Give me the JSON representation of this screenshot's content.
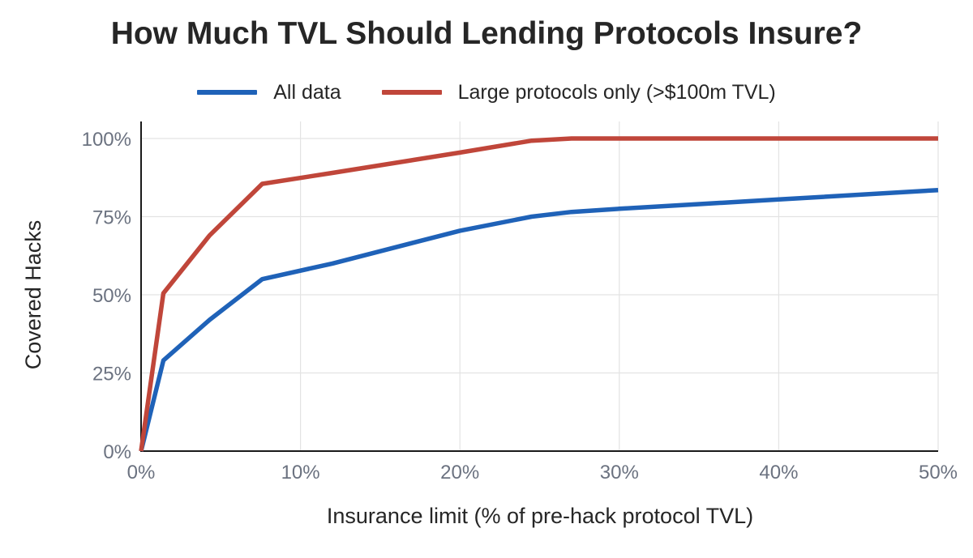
{
  "chart_data": {
    "type": "line",
    "title": "How Much TVL Should Lending Protocols Insure?",
    "xlabel": "Insurance limit (% of pre-hack protocol TVL)",
    "ylabel": "Covered Hacks",
    "xlim": [
      0,
      50
    ],
    "ylim": [
      0,
      100
    ],
    "x_ticks": [
      0,
      10,
      20,
      30,
      40,
      50
    ],
    "x_tick_labels": [
      "0%",
      "10%",
      "20%",
      "30%",
      "40%",
      "50%"
    ],
    "y_ticks": [
      0,
      25,
      50,
      75,
      100
    ],
    "y_tick_labels": [
      "0%",
      "25%",
      "50%",
      "75%",
      "100%"
    ],
    "grid": true,
    "legend_position": "top-center",
    "series": [
      {
        "name": "All data",
        "color": "#1f62b8",
        "points": [
          [
            0,
            0
          ],
          [
            1.4,
            29
          ],
          [
            4.3,
            42
          ],
          [
            7.6,
            55
          ],
          [
            12,
            60
          ],
          [
            20,
            70.5
          ],
          [
            24.5,
            75
          ],
          [
            27,
            76.5
          ],
          [
            30,
            77.5
          ],
          [
            40,
            80.5
          ],
          [
            50,
            83.5
          ]
        ]
      },
      {
        "name": "Large protocols only (>$100m TVL)",
        "color": "#c0463a",
        "points": [
          [
            0,
            0
          ],
          [
            1.4,
            50.5
          ],
          [
            4.3,
            69
          ],
          [
            7.6,
            85.5
          ],
          [
            12,
            89
          ],
          [
            20,
            95.5
          ],
          [
            24.5,
            99.3
          ],
          [
            27,
            100
          ],
          [
            30,
            100
          ],
          [
            40,
            100
          ],
          [
            50,
            100
          ]
        ]
      }
    ]
  }
}
